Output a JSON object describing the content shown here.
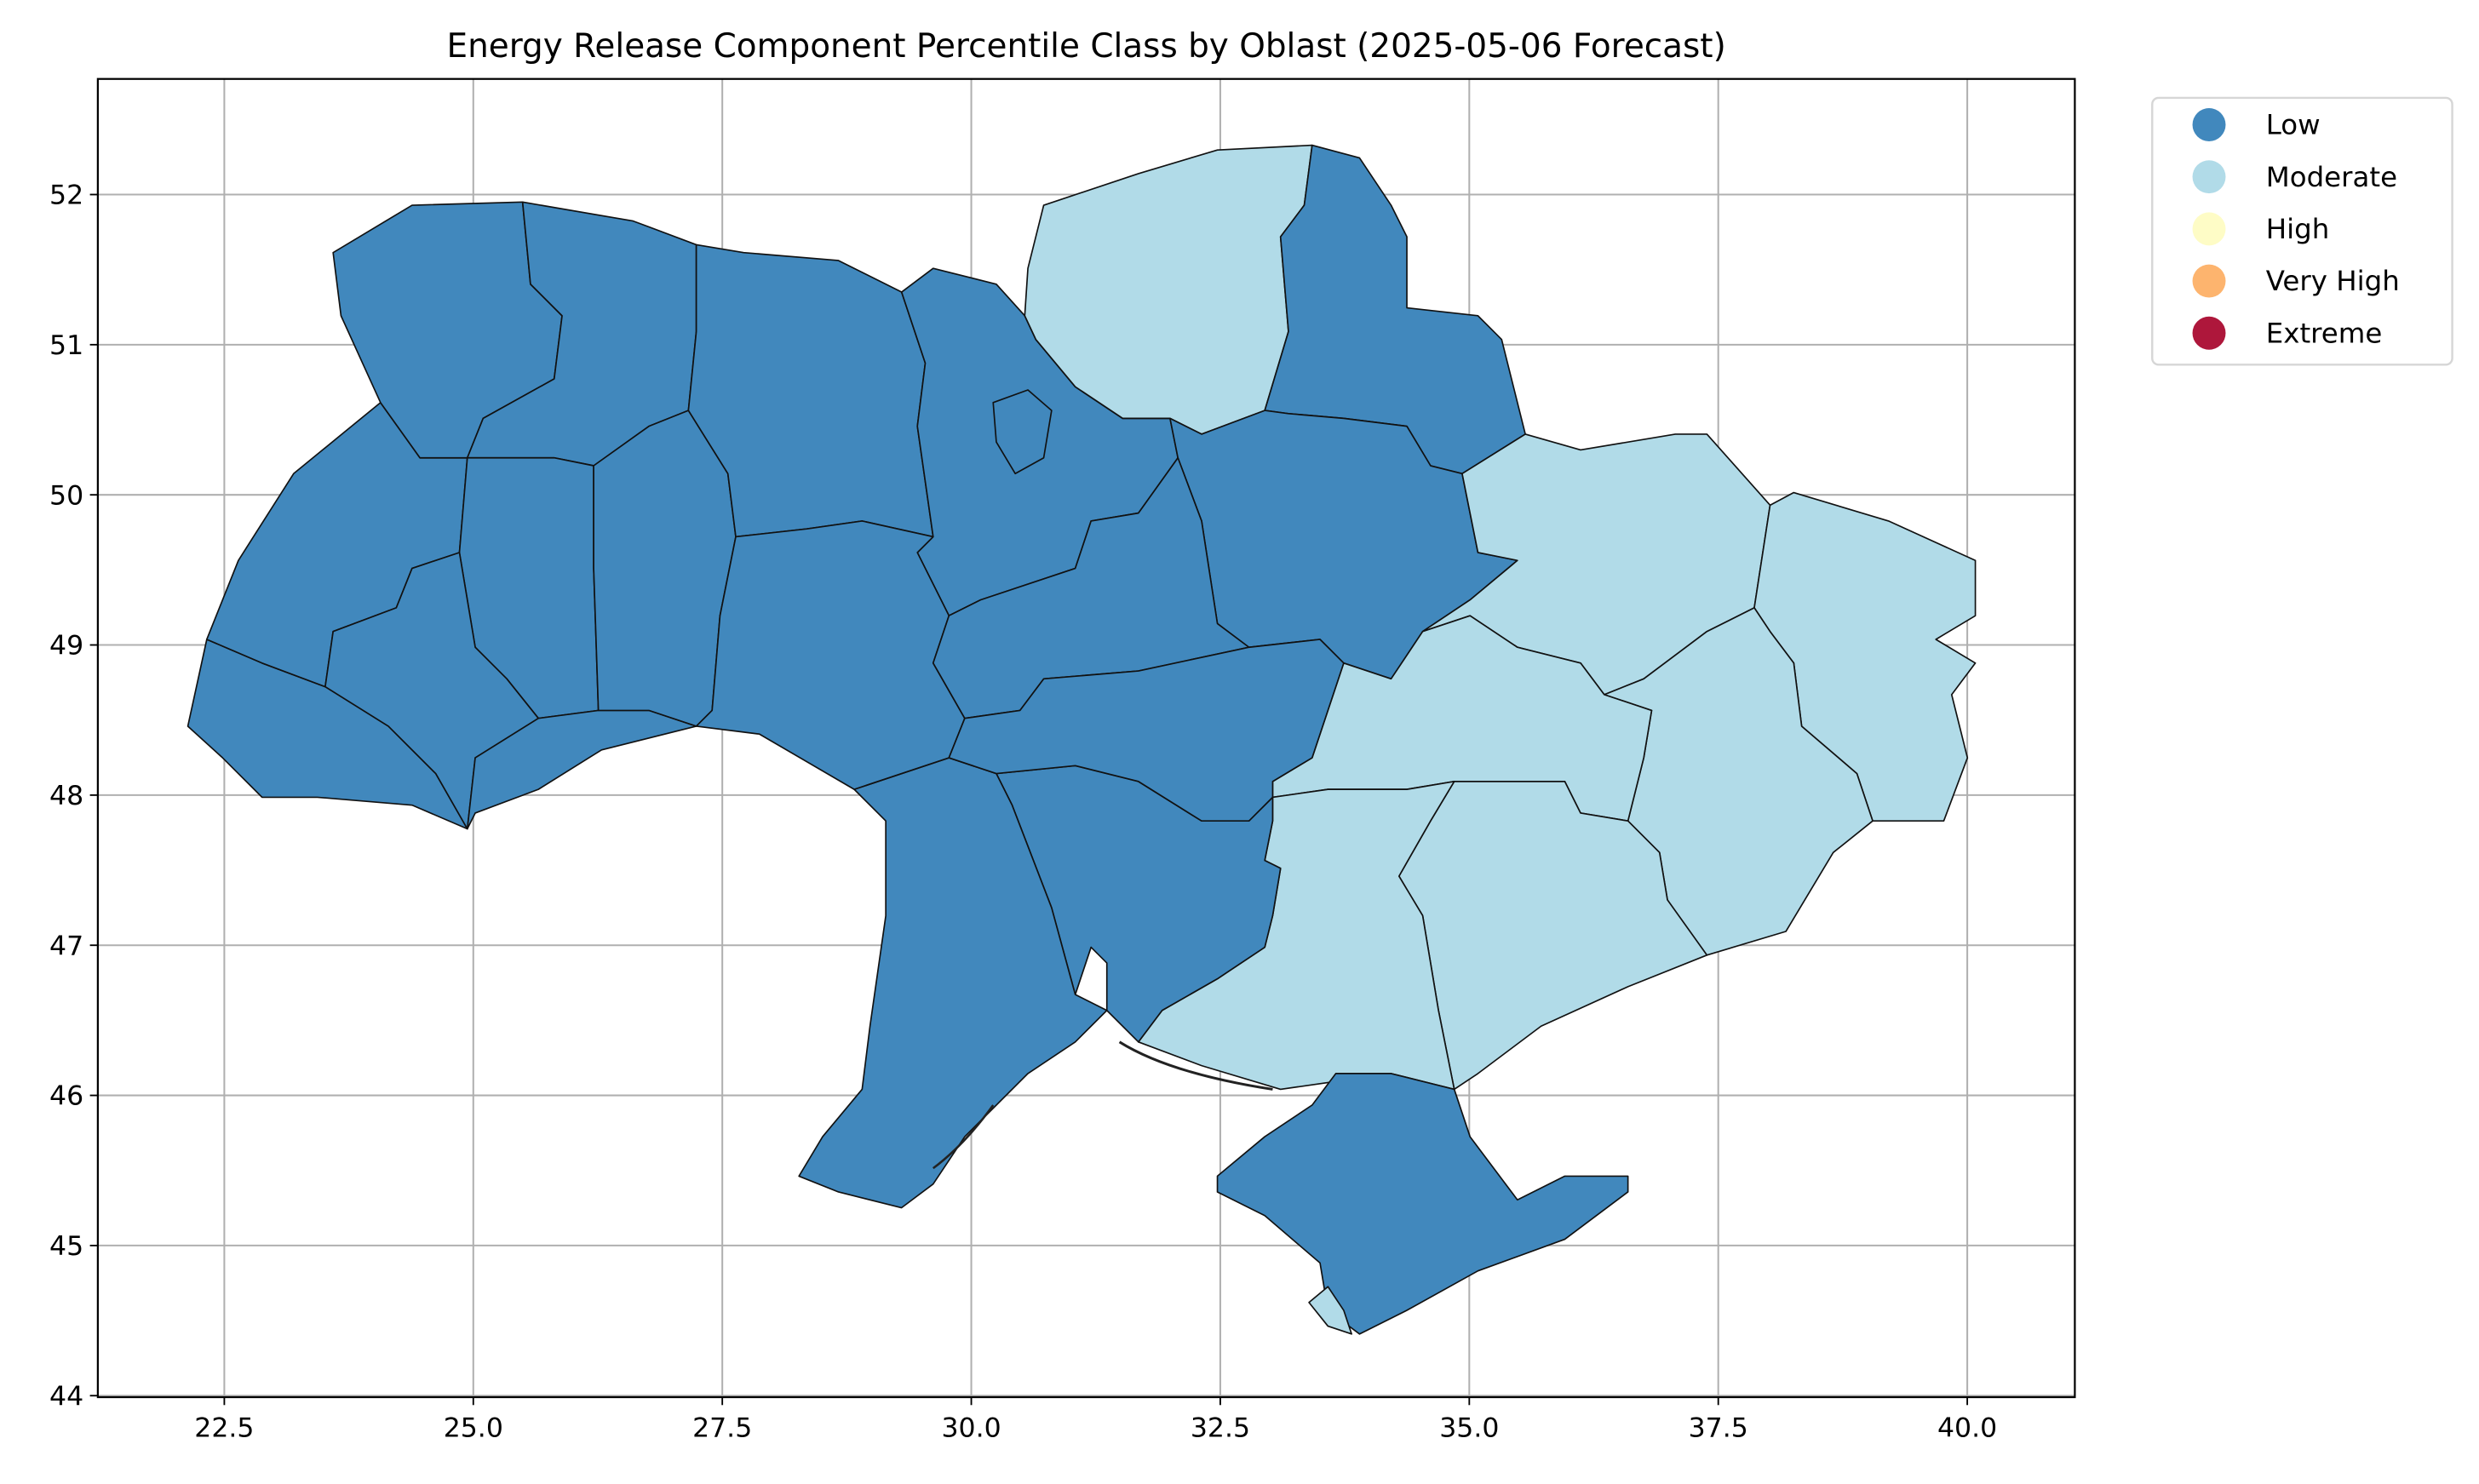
{
  "chart_data": {
    "type": "choropleth",
    "title": "Energy Release Component Percentile Class by Oblast (2025-05-06 Forecast)",
    "xlabel": "",
    "ylabel": "",
    "xlim": [
      21.23,
      41.08
    ],
    "ylim": [
      43.99,
      52.77
    ],
    "x_ticks": [
      "22.5",
      "25.0",
      "27.5",
      "30.0",
      "32.5",
      "35.0",
      "37.5",
      "40.0"
    ],
    "y_ticks": [
      "44",
      "45",
      "46",
      "47",
      "48",
      "49",
      "50",
      "51",
      "52"
    ],
    "grid": true,
    "legend_position": "outside-top-right",
    "legend": [
      {
        "label": "Low",
        "color": "#4188bd"
      },
      {
        "label": "Moderate",
        "color": "#b1dbe8"
      },
      {
        "label": "High",
        "color": "#fefcc6"
      },
      {
        "label": "Very High",
        "color": "#fdb46e"
      },
      {
        "label": "Extreme",
        "color": "#ae173b"
      }
    ],
    "region_classes": {
      "zakarpattia": "Low",
      "lviv": "Low",
      "volyn": "Low",
      "rivne": "Low",
      "ternopil": "Low",
      "ivano_frankivsk": "Low",
      "chernivtsi": "Low",
      "khmelnytskyi": "Low",
      "zhytomyr": "Low",
      "kyiv_oblast": "Low",
      "kyiv_city": "Low",
      "chernihiv": "Moderate",
      "sumy": "Low",
      "poltava": "Low",
      "kharkiv": "Moderate",
      "luhansk": "Moderate",
      "donetsk": "Moderate",
      "dnipropetrovsk": "Moderate",
      "zaporizhzhia": "Moderate",
      "kherson": "Moderate",
      "mykolaiv": "Low",
      "odesa": "Low",
      "vinnytsia": "Low",
      "cherkasy": "Low",
      "kirovohrad": "Low",
      "crimea": "Low",
      "sevastopol": "Moderate"
    }
  }
}
